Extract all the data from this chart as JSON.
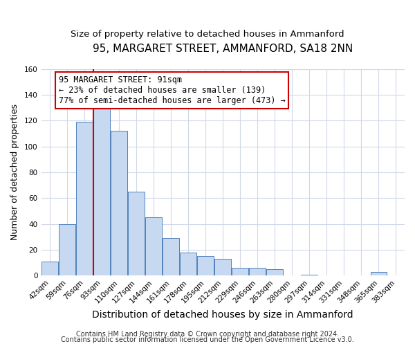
{
  "title": "95, MARGARET STREET, AMMANFORD, SA18 2NN",
  "subtitle": "Size of property relative to detached houses in Ammanford",
  "xlabel": "Distribution of detached houses by size in Ammanford",
  "ylabel": "Number of detached properties",
  "bar_labels": [
    "42sqm",
    "59sqm",
    "76sqm",
    "93sqm",
    "110sqm",
    "127sqm",
    "144sqm",
    "161sqm",
    "178sqm",
    "195sqm",
    "212sqm",
    "229sqm",
    "246sqm",
    "263sqm",
    "280sqm",
    "297sqm",
    "314sqm",
    "331sqm",
    "348sqm",
    "365sqm",
    "383sqm"
  ],
  "bar_values": [
    11,
    40,
    119,
    132,
    112,
    65,
    45,
    29,
    18,
    15,
    13,
    6,
    6,
    5,
    0,
    1,
    0,
    0,
    0,
    3,
    0
  ],
  "bar_color": "#c6d9f0",
  "bar_edge_color": "#4f81bd",
  "ylim": [
    0,
    160
  ],
  "yticks": [
    0,
    20,
    40,
    60,
    80,
    100,
    120,
    140,
    160
  ],
  "property_line_index": 3,
  "property_line_color": "#cc0000",
  "annotation_title": "95 MARGARET STREET: 91sqm",
  "annotation_line1": "← 23% of detached houses are smaller (139)",
  "annotation_line2": "77% of semi-detached houses are larger (473) →",
  "annotation_box_color": "#ffffff",
  "annotation_box_edge": "#cc0000",
  "footer1": "Contains HM Land Registry data © Crown copyright and database right 2024.",
  "footer2": "Contains public sector information licensed under the Open Government Licence v3.0.",
  "bg_color": "#ffffff",
  "grid_color": "#d0d8e8",
  "title_fontsize": 11,
  "subtitle_fontsize": 9.5,
  "xlabel_fontsize": 10,
  "ylabel_fontsize": 9,
  "tick_fontsize": 7.5,
  "annotation_fontsize": 8.5,
  "footer_fontsize": 7
}
